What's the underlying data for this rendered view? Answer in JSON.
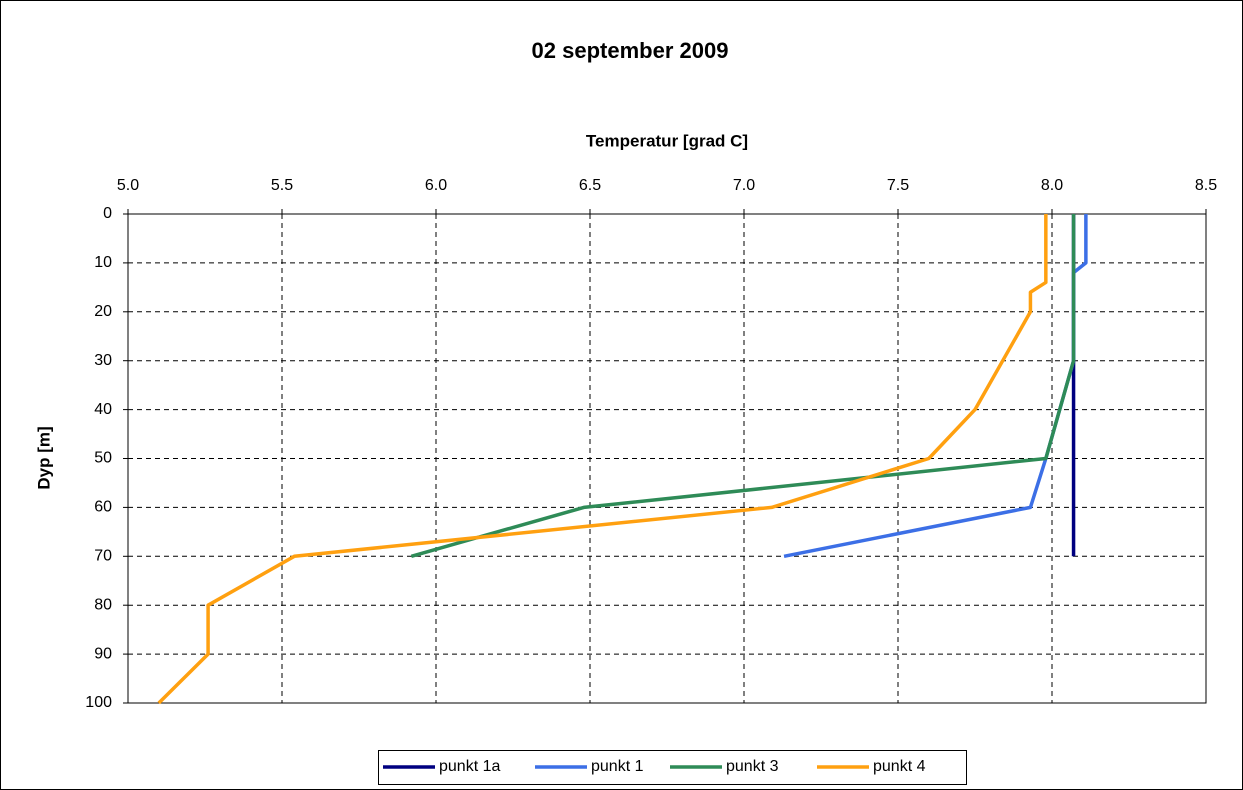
{
  "chart_data": {
    "type": "line",
    "title": "02 september 2009",
    "xlabel": "Temperatur [grad C]",
    "ylabel": "Dyp [m]",
    "xlim": [
      5.0,
      8.5
    ],
    "xticks": [
      {
        "value": 5.0,
        "label": "5.0"
      },
      {
        "value": 5.5,
        "label": "5.5"
      },
      {
        "value": 6.0,
        "label": "6.0"
      },
      {
        "value": 6.5,
        "label": "6.5"
      },
      {
        "value": 7.0,
        "label": "7.0"
      },
      {
        "value": 7.5,
        "label": "7.5"
      },
      {
        "value": 8.0,
        "label": "8.0"
      },
      {
        "value": 8.5,
        "label": "8.5"
      }
    ],
    "ylim": [
      0,
      100
    ],
    "yticks": [
      0,
      10,
      20,
      30,
      40,
      50,
      60,
      70,
      80,
      90,
      100
    ],
    "y_inverted": true,
    "x_axis_top": true,
    "grid": true,
    "legend": "bottom",
    "series": [
      {
        "name": "punkt 1a",
        "color": "#000080",
        "x": [
          8.07,
          8.07,
          8.07,
          8.07,
          8.07,
          8.07,
          8.07,
          8.07
        ],
        "y": [
          0,
          10,
          20,
          30,
          40,
          50,
          60,
          70
        ]
      },
      {
        "name": "punkt 1",
        "color": "#3c6fe6",
        "x": [
          8.11,
          8.11,
          8.07,
          8.07,
          8.07,
          7.98,
          7.93,
          7.13
        ],
        "y": [
          0,
          10,
          12,
          20,
          30,
          50,
          60,
          70
        ]
      },
      {
        "name": "punkt 3",
        "color": "#2e8b57",
        "x": [
          8.07,
          8.07,
          8.07,
          8.07,
          7.98,
          6.48,
          5.92
        ],
        "y": [
          0,
          10,
          20,
          30,
          50,
          60,
          70
        ]
      },
      {
        "name": "punkt 4",
        "color": "#ffa010",
        "x": [
          7.98,
          7.98,
          7.98,
          7.93,
          7.93,
          7.75,
          7.6,
          7.09,
          5.54,
          5.26,
          5.26,
          5.1
        ],
        "y": [
          0,
          10,
          14,
          16,
          20,
          40,
          50,
          60,
          70,
          80,
          90,
          100
        ]
      }
    ]
  }
}
